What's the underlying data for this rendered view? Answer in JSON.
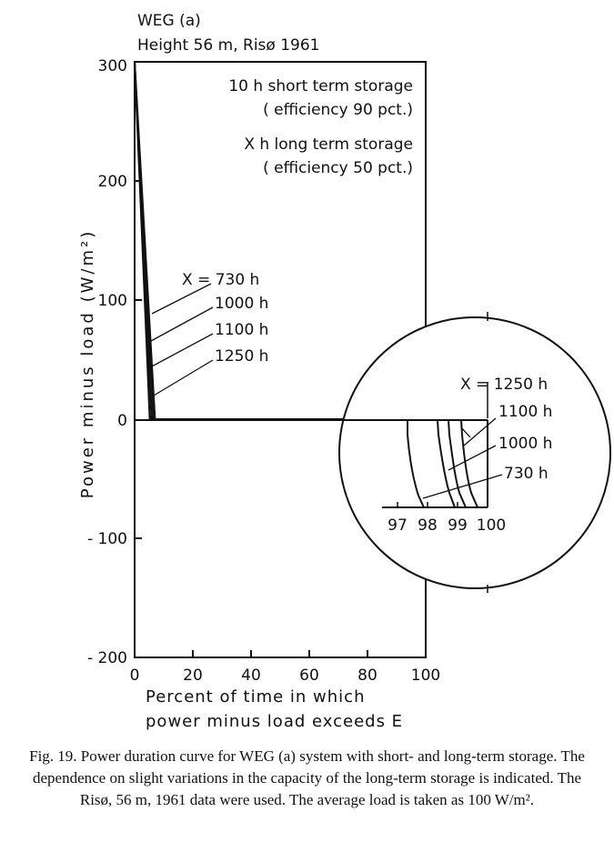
{
  "chart_data": {
    "type": "line",
    "title_lines": [
      "WEG (a)",
      "Height 56 m, Risø 1961"
    ],
    "annotations": {
      "short_term": [
        "10 h short term storage",
        "( efficiency 90 pct.)"
      ],
      "long_term": [
        "X h long term storage",
        "( efficiency 50 pct.)"
      ]
    },
    "ylabel": "Power minus load (W/m²)",
    "xlabel": [
      "Percent of time in which",
      "power minus load exceeds E"
    ],
    "xlim": [
      0,
      100
    ],
    "ylim": [
      -200,
      300
    ],
    "xticks": [
      "0",
      "20",
      "40",
      "60",
      "80",
      "100"
    ],
    "yticks": [
      "300",
      "200",
      "100",
      "0",
      "- 100",
      "- 200"
    ],
    "series": [
      {
        "name": "X = 730 h",
        "x": [
          0,
          5.2,
          5.4,
          100
        ],
        "y": [
          300,
          0,
          0,
          0
        ]
      },
      {
        "name": "1000 h",
        "x": [
          0,
          5.8,
          6.0,
          100
        ],
        "y": [
          300,
          0,
          0,
          0
        ]
      },
      {
        "name": "1100 h",
        "x": [
          0,
          6.4,
          6.6,
          100
        ],
        "y": [
          300,
          0,
          0,
          0
        ]
      },
      {
        "name": "1250 h",
        "x": [
          0,
          7.0,
          7.2,
          100
        ],
        "y": [
          300,
          0,
          0,
          0
        ]
      }
    ],
    "inset": {
      "xticks": [
        "97",
        "98",
        "99",
        "100"
      ],
      "labels": [
        "X = 1250 h",
        "1100 h",
        "1000 h",
        "730 h"
      ]
    }
  },
  "caption": "Fig. 19. Power duration curve for WEG (a) system with short- and long-term storage. The dependence on slight variations in the capacity of the long-term storage is indicated. The Risø, 56 m, 1961 data were used. The average load is taken as 100 W/m²."
}
